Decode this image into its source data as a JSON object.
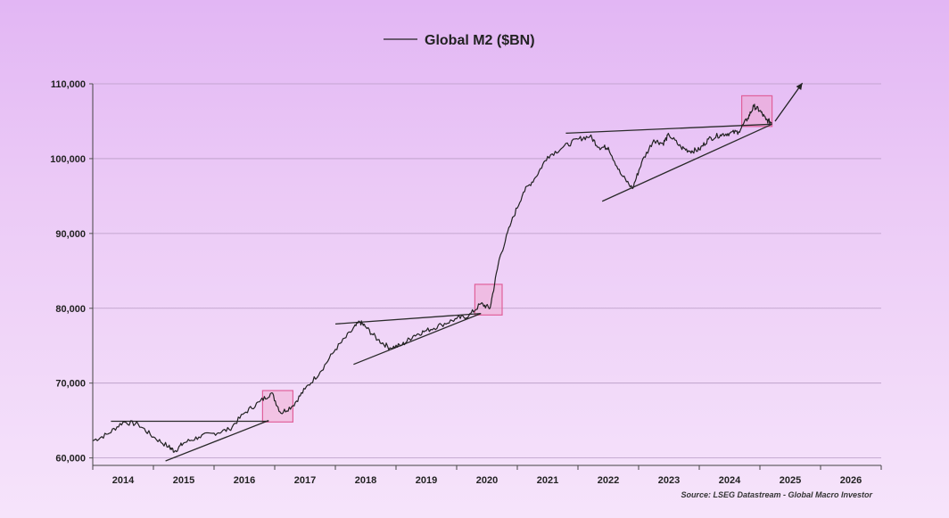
{
  "chart_data": {
    "type": "line",
    "title": "",
    "xlabel": "",
    "ylabel": "",
    "xlim": [
      2013.5,
      2026.5
    ],
    "ylim": [
      59000,
      110000
    ],
    "grid": true,
    "legend": "top-center",
    "y_ticks": [
      60000,
      70000,
      80000,
      90000,
      100000,
      110000
    ],
    "y_tick_labels": [
      "60,000",
      "70,000",
      "80,000",
      "90,000",
      "100,000",
      "110,000"
    ],
    "x_tick_labels": [
      "2014",
      "2015",
      "2016",
      "2017",
      "2018",
      "2019",
      "2020",
      "2021",
      "2022",
      "2023",
      "2024",
      "2025",
      "2026"
    ],
    "source": "Source: LSEG Datastream - Global Macro Investor",
    "series": [
      {
        "name": "Global M2 ($BN)",
        "color": "#222222",
        "points": [
          [
            2013.5,
            62300
          ],
          [
            2013.75,
            63200
          ],
          [
            2014.0,
            64800
          ],
          [
            2014.25,
            64500
          ],
          [
            2014.5,
            62800
          ],
          [
            2014.75,
            61500
          ],
          [
            2014.85,
            60900
          ],
          [
            2015.0,
            62000
          ],
          [
            2015.25,
            62800
          ],
          [
            2015.5,
            63300
          ],
          [
            2015.75,
            63800
          ],
          [
            2016.0,
            66000
          ],
          [
            2016.25,
            67500
          ],
          [
            2016.45,
            68700
          ],
          [
            2016.6,
            66000
          ],
          [
            2016.8,
            67000
          ],
          [
            2017.0,
            69200
          ],
          [
            2017.25,
            71500
          ],
          [
            2017.5,
            74500
          ],
          [
            2017.75,
            76800
          ],
          [
            2017.9,
            78200
          ],
          [
            2018.0,
            77500
          ],
          [
            2018.2,
            75800
          ],
          [
            2018.4,
            74700
          ],
          [
            2018.6,
            75100
          ],
          [
            2018.8,
            76400
          ],
          [
            2019.0,
            77000
          ],
          [
            2019.25,
            77800
          ],
          [
            2019.5,
            78600
          ],
          [
            2019.7,
            79000
          ],
          [
            2019.9,
            80600
          ],
          [
            2020.05,
            80000
          ],
          [
            2020.2,
            86500
          ],
          [
            2020.4,
            91500
          ],
          [
            2020.6,
            95500
          ],
          [
            2020.8,
            97500
          ],
          [
            2021.0,
            100300
          ],
          [
            2021.25,
            101500
          ],
          [
            2021.5,
            102600
          ],
          [
            2021.7,
            103000
          ],
          [
            2021.85,
            101500
          ],
          [
            2022.0,
            101500
          ],
          [
            2022.2,
            98000
          ],
          [
            2022.4,
            96000
          ],
          [
            2022.55,
            99500
          ],
          [
            2022.75,
            102500
          ],
          [
            2022.9,
            102000
          ],
          [
            2023.0,
            103200
          ],
          [
            2023.2,
            101500
          ],
          [
            2023.35,
            101000
          ],
          [
            2023.5,
            101200
          ],
          [
            2023.65,
            102600
          ],
          [
            2023.85,
            103200
          ],
          [
            2024.0,
            103400
          ],
          [
            2024.15,
            103600
          ],
          [
            2024.3,
            105400
          ],
          [
            2024.4,
            107000
          ],
          [
            2024.5,
            106400
          ],
          [
            2024.6,
            105200
          ],
          [
            2024.7,
            104800
          ]
        ]
      }
    ],
    "annotations": {
      "trend_lines": [
        {
          "from": [
            2013.8,
            64900
          ],
          "to": [
            2016.4,
            64900
          ]
        },
        {
          "from": [
            2014.7,
            59600
          ],
          "to": [
            2016.4,
            65000
          ]
        },
        {
          "from": [
            2017.5,
            77900
          ],
          "to": [
            2019.9,
            79300
          ]
        },
        {
          "from": [
            2017.8,
            72500
          ],
          "to": [
            2019.9,
            79300
          ]
        },
        {
          "from": [
            2021.3,
            103400
          ],
          "to": [
            2024.7,
            104600
          ]
        },
        {
          "from": [
            2021.9,
            94300
          ],
          "to": [
            2024.7,
            104600
          ]
        }
      ],
      "highlight_boxes": [
        {
          "x": [
            2016.3,
            2016.8
          ],
          "y": [
            64800,
            69000
          ]
        },
        {
          "x": [
            2019.8,
            2020.25
          ],
          "y": [
            79100,
            83200
          ]
        },
        {
          "x": [
            2024.2,
            2024.7
          ],
          "y": [
            104300,
            108400
          ]
        }
      ],
      "arrow": {
        "from": [
          2024.75,
          105000
        ],
        "to": [
          2025.2,
          110100
        ]
      }
    }
  }
}
